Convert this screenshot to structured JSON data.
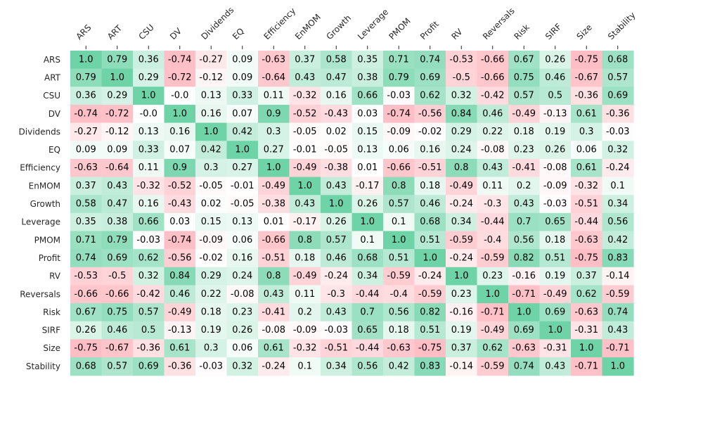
{
  "chart_data": {
    "type": "heatmap",
    "title": "",
    "xlabel": "",
    "ylabel": "",
    "x_labels": [
      "ARS",
      "ART",
      "CSU",
      "DV",
      "Dividends",
      "EQ",
      "Efficiency",
      "EnMOM",
      "Growth",
      "Leverage",
      "PMOM",
      "Profit",
      "RV",
      "Reversals",
      "Risk",
      "SIRF",
      "Size",
      "Stability"
    ],
    "y_labels": [
      "ARS",
      "ART",
      "CSU",
      "DV",
      "Dividends",
      "EQ",
      "Efficiency",
      "EnMOM",
      "Growth",
      "Leverage",
      "PMOM",
      "Profit",
      "RV",
      "Reversals",
      "Risk",
      "SIRF",
      "Size",
      "Stability"
    ],
    "value_range": [
      -1,
      1
    ],
    "colors": {
      "positive": "#6fd3a8",
      "negative": "#ffa8b2",
      "neutral": "#ffffff",
      "text": "#000000",
      "axis_label": "#262626"
    },
    "values": [
      [
        1.0,
        0.79,
        0.36,
        -0.74,
        -0.27,
        0.09,
        -0.63,
        0.37,
        0.58,
        0.35,
        0.71,
        0.74,
        -0.53,
        -0.66,
        0.67,
        0.26,
        -0.75,
        0.68
      ],
      [
        0.79,
        1.0,
        0.29,
        -0.72,
        -0.12,
        0.09,
        -0.64,
        0.43,
        0.47,
        0.38,
        0.79,
        0.69,
        -0.5,
        -0.66,
        0.75,
        0.46,
        -0.67,
        0.57
      ],
      [
        0.36,
        0.29,
        1.0,
        -0.0,
        0.13,
        0.33,
        0.11,
        -0.32,
        0.16,
        0.66,
        -0.03,
        0.62,
        0.32,
        -0.42,
        0.57,
        0.5,
        -0.36,
        0.69
      ],
      [
        -0.74,
        -0.72,
        -0.0,
        1.0,
        0.16,
        0.07,
        0.9,
        -0.52,
        -0.43,
        0.03,
        -0.74,
        -0.56,
        0.84,
        0.46,
        -0.49,
        -0.13,
        0.61,
        -0.36
      ],
      [
        -0.27,
        -0.12,
        0.13,
        0.16,
        1.0,
        0.42,
        0.3,
        -0.05,
        0.02,
        0.15,
        -0.09,
        -0.02,
        0.29,
        0.22,
        0.18,
        0.19,
        0.3,
        -0.03
      ],
      [
        0.09,
        0.09,
        0.33,
        0.07,
        0.42,
        1.0,
        0.27,
        -0.01,
        -0.05,
        0.13,
        0.06,
        0.16,
        0.24,
        -0.08,
        0.23,
        0.26,
        0.06,
        0.32
      ],
      [
        -0.63,
        -0.64,
        0.11,
        0.9,
        0.3,
        0.27,
        1.0,
        -0.49,
        -0.38,
        0.01,
        -0.66,
        -0.51,
        0.8,
        0.43,
        -0.41,
        -0.08,
        0.61,
        -0.24
      ],
      [
        0.37,
        0.43,
        -0.32,
        -0.52,
        -0.05,
        -0.01,
        -0.49,
        1.0,
        0.43,
        -0.17,
        0.8,
        0.18,
        -0.49,
        0.11,
        0.2,
        -0.09,
        -0.32,
        0.1
      ],
      [
        0.58,
        0.47,
        0.16,
        -0.43,
        0.02,
        -0.05,
        -0.38,
        0.43,
        1.0,
        0.26,
        0.57,
        0.46,
        -0.24,
        -0.3,
        0.43,
        -0.03,
        -0.51,
        0.34
      ],
      [
        0.35,
        0.38,
        0.66,
        0.03,
        0.15,
        0.13,
        0.01,
        -0.17,
        0.26,
        1.0,
        0.1,
        0.68,
        0.34,
        -0.44,
        0.7,
        0.65,
        -0.44,
        0.56
      ],
      [
        0.71,
        0.79,
        -0.03,
        -0.74,
        -0.09,
        0.06,
        -0.66,
        0.8,
        0.57,
        0.1,
        1.0,
        0.51,
        -0.59,
        -0.4,
        0.56,
        0.18,
        -0.63,
        0.42
      ],
      [
        0.74,
        0.69,
        0.62,
        -0.56,
        -0.02,
        0.16,
        -0.51,
        0.18,
        0.46,
        0.68,
        0.51,
        1.0,
        -0.24,
        -0.59,
        0.82,
        0.51,
        -0.75,
        0.83
      ],
      [
        -0.53,
        -0.5,
        0.32,
        0.84,
        0.29,
        0.24,
        0.8,
        -0.49,
        -0.24,
        0.34,
        -0.59,
        -0.24,
        1.0,
        0.23,
        -0.16,
        0.19,
        0.37,
        -0.14
      ],
      [
        -0.66,
        -0.66,
        -0.42,
        0.46,
        0.22,
        -0.08,
        0.43,
        0.11,
        -0.3,
        -0.44,
        -0.4,
        -0.59,
        0.23,
        1.0,
        -0.71,
        -0.49,
        0.62,
        -0.59
      ],
      [
        0.67,
        0.75,
        0.57,
        -0.49,
        0.18,
        0.23,
        -0.41,
        0.2,
        0.43,
        0.7,
        0.56,
        0.82,
        -0.16,
        -0.71,
        1.0,
        0.69,
        -0.63,
        0.74
      ],
      [
        0.26,
        0.46,
        0.5,
        -0.13,
        0.19,
        0.26,
        -0.08,
        -0.09,
        -0.03,
        0.65,
        0.18,
        0.51,
        0.19,
        -0.49,
        0.69,
        1.0,
        -0.31,
        0.43
      ],
      [
        -0.75,
        -0.67,
        -0.36,
        0.61,
        0.3,
        0.06,
        0.61,
        -0.32,
        -0.51,
        -0.44,
        -0.63,
        -0.75,
        0.37,
        0.62,
        -0.63,
        -0.31,
        1.0,
        -0.71
      ],
      [
        0.68,
        0.57,
        0.69,
        -0.36,
        -0.03,
        0.32,
        -0.24,
        0.1,
        0.34,
        0.56,
        0.42,
        0.83,
        -0.14,
        -0.59,
        0.74,
        0.43,
        -0.71,
        1.0
      ]
    ],
    "cell_labels": [
      [
        "1.0",
        "0.79",
        "0.36",
        "-0.74",
        "-0.27",
        "0.09",
        "-0.63",
        "0.37",
        "0.58",
        "0.35",
        "0.71",
        "0.74",
        "-0.53",
        "-0.66",
        "0.67",
        "0.26",
        "-0.75",
        "0.68"
      ],
      [
        "0.79",
        "1.0",
        "0.29",
        "-0.72",
        "-0.12",
        "0.09",
        "-0.64",
        "0.43",
        "0.47",
        "0.38",
        "0.79",
        "0.69",
        "-0.5",
        "-0.66",
        "0.75",
        "0.46",
        "-0.67",
        "0.57"
      ],
      [
        "0.36",
        "0.29",
        "1.0",
        "-0.0",
        "0.13",
        "0.33",
        "0.11",
        "-0.32",
        "0.16",
        "0.66",
        "-0.03",
        "0.62",
        "0.32",
        "-0.42",
        "0.57",
        "0.5",
        "-0.36",
        "0.69"
      ],
      [
        "-0.74",
        "-0.72",
        "-0.0",
        "1.0",
        "0.16",
        "0.07",
        "0.9",
        "-0.52",
        "-0.43",
        "0.03",
        "-0.74",
        "-0.56",
        "0.84",
        "0.46",
        "-0.49",
        "-0.13",
        "0.61",
        "-0.36"
      ],
      [
        "-0.27",
        "-0.12",
        "0.13",
        "0.16",
        "1.0",
        "0.42",
        "0.3",
        "-0.05",
        "0.02",
        "0.15",
        "-0.09",
        "-0.02",
        "0.29",
        "0.22",
        "0.18",
        "0.19",
        "0.3",
        "-0.03"
      ],
      [
        "0.09",
        "0.09",
        "0.33",
        "0.07",
        "0.42",
        "1.0",
        "0.27",
        "-0.01",
        "-0.05",
        "0.13",
        "0.06",
        "0.16",
        "0.24",
        "-0.08",
        "0.23",
        "0.26",
        "0.06",
        "0.32"
      ],
      [
        "-0.63",
        "-0.64",
        "0.11",
        "0.9",
        "0.3",
        "0.27",
        "1.0",
        "-0.49",
        "-0.38",
        "0.01",
        "-0.66",
        "-0.51",
        "0.8",
        "0.43",
        "-0.41",
        "-0.08",
        "0.61",
        "-0.24"
      ],
      [
        "0.37",
        "0.43",
        "-0.32",
        "-0.52",
        "-0.05",
        "-0.01",
        "-0.49",
        "1.0",
        "0.43",
        "-0.17",
        "0.8",
        "0.18",
        "-0.49",
        "0.11",
        "0.2",
        "-0.09",
        "-0.32",
        "0.1"
      ],
      [
        "0.58",
        "0.47",
        "0.16",
        "-0.43",
        "0.02",
        "-0.05",
        "-0.38",
        "0.43",
        "1.0",
        "0.26",
        "0.57",
        "0.46",
        "-0.24",
        "-0.3",
        "0.43",
        "-0.03",
        "-0.51",
        "0.34"
      ],
      [
        "0.35",
        "0.38",
        "0.66",
        "0.03",
        "0.15",
        "0.13",
        "0.01",
        "-0.17",
        "0.26",
        "1.0",
        "0.1",
        "0.68",
        "0.34",
        "-0.44",
        "0.7",
        "0.65",
        "-0.44",
        "0.56"
      ],
      [
        "0.71",
        "0.79",
        "-0.03",
        "-0.74",
        "-0.09",
        "0.06",
        "-0.66",
        "0.8",
        "0.57",
        "0.1",
        "1.0",
        "0.51",
        "-0.59",
        "-0.4",
        "0.56",
        "0.18",
        "-0.63",
        "0.42"
      ],
      [
        "0.74",
        "0.69",
        "0.62",
        "-0.56",
        "-0.02",
        "0.16",
        "-0.51",
        "0.18",
        "0.46",
        "0.68",
        "0.51",
        "1.0",
        "-0.24",
        "-0.59",
        "0.82",
        "0.51",
        "-0.75",
        "0.83"
      ],
      [
        "-0.53",
        "-0.5",
        "0.32",
        "0.84",
        "0.29",
        "0.24",
        "0.8",
        "-0.49",
        "-0.24",
        "0.34",
        "-0.59",
        "-0.24",
        "1.0",
        "0.23",
        "-0.16",
        "0.19",
        "0.37",
        "-0.14"
      ],
      [
        "-0.66",
        "-0.66",
        "-0.42",
        "0.46",
        "0.22",
        "-0.08",
        "0.43",
        "0.11",
        "-0.3",
        "-0.44",
        "-0.4",
        "-0.59",
        "0.23",
        "1.0",
        "-0.71",
        "-0.49",
        "0.62",
        "-0.59"
      ],
      [
        "0.67",
        "0.75",
        "0.57",
        "-0.49",
        "0.18",
        "0.23",
        "-0.41",
        "0.2",
        "0.43",
        "0.7",
        "0.56",
        "0.82",
        "-0.16",
        "-0.71",
        "1.0",
        "0.69",
        "-0.63",
        "0.74"
      ],
      [
        "0.26",
        "0.46",
        "0.5",
        "-0.13",
        "0.19",
        "0.26",
        "-0.08",
        "-0.09",
        "-0.03",
        "0.65",
        "0.18",
        "0.51",
        "0.19",
        "-0.49",
        "0.69",
        "1.0",
        "-0.31",
        "0.43"
      ],
      [
        "-0.75",
        "-0.67",
        "-0.36",
        "0.61",
        "0.3",
        "0.06",
        "0.61",
        "-0.32",
        "-0.51",
        "-0.44",
        "-0.63",
        "-0.75",
        "0.37",
        "0.62",
        "-0.63",
        "-0.31",
        "1.0",
        "-0.71"
      ],
      [
        "0.68",
        "0.57",
        "0.69",
        "-0.36",
        "-0.03",
        "0.32",
        "-0.24",
        "0.1",
        "0.34",
        "0.56",
        "0.42",
        "0.83",
        "-0.14",
        "-0.59",
        "0.74",
        "0.43",
        "-0.71",
        "1.0"
      ]
    ],
    "grid": false,
    "legend": "none"
  }
}
